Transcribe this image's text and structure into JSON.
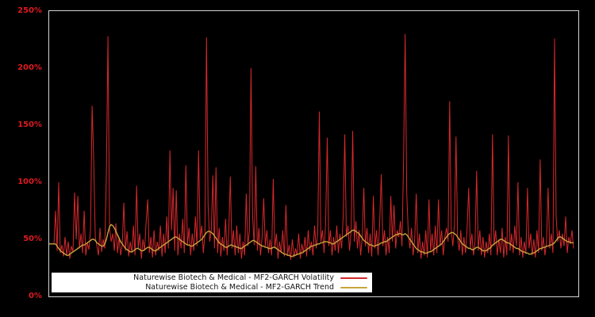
{
  "figure": {
    "background": "#000000",
    "plot_border_color": "#d5d5d5"
  },
  "y_axis": {
    "label_color": "#dd1a21",
    "ticks_top_to_bottom": [
      "250%",
      "200%",
      "150%",
      "100%",
      "50%",
      "0%"
    ]
  },
  "legend": {
    "background": "#ffffff",
    "items": [
      {
        "label": "Naturewise Biotech & Medical - MF2-GARCH Volatility",
        "color": "#d7282c"
      },
      {
        "label": "Naturewise Biotech & Medical - MF2-GARCH Trend",
        "color": "#c9a43c"
      }
    ]
  },
  "chart_data": {
    "type": "line",
    "title": "",
    "xlabel": "",
    "ylabel": "",
    "y_unit": "percent",
    "ylim": [
      0,
      250
    ],
    "y_ticks": [
      0,
      50,
      100,
      150,
      200,
      250
    ],
    "x_tick_labels": [],
    "grid": false,
    "legend_position": "bottom-left",
    "plot_bg": "#000000",
    "series": [
      {
        "name": "Naturewise Biotech & Medical - MF2-GARCH Volatility",
        "color": "#d7282c",
        "values": [
          46,
          46,
          46,
          46,
          75,
          40,
          100,
          38,
          45,
          35,
          52,
          36,
          48,
          33,
          44,
          39,
          91,
          50,
          88,
          42,
          55,
          38,
          75,
          36,
          47,
          41,
          58,
          167,
          120,
          52,
          44,
          36,
          60,
          39,
          50,
          42,
          109,
          228,
          60,
          48,
          55,
          40,
          64,
          38,
          52,
          36,
          45,
          82,
          40,
          57,
          35,
          48,
          38,
          62,
          36,
          97,
          42,
          55,
          33,
          50,
          40,
          65,
          85,
          38,
          52,
          34,
          58,
          36,
          48,
          40,
          62,
          35,
          55,
          38,
          70,
          42,
          128,
          58,
          95,
          40,
          93,
          36,
          55,
          42,
          68,
          38,
          115,
          45,
          60,
          36,
          55,
          40,
          70,
          44,
          128,
          50,
          62,
          38,
          55,
          227,
          80,
          48,
          58,
          106,
          42,
          113,
          38,
          60,
          35,
          52,
          40,
          68,
          36,
          55,
          105,
          42,
          58,
          36,
          62,
          38,
          55,
          33,
          48,
          36,
          90,
          44,
          58,
          200,
          70,
          45,
          114,
          40,
          60,
          36,
          52,
          86,
          44,
          58,
          38,
          50,
          36,
          103,
          42,
          55,
          33,
          48,
          38,
          58,
          35,
          80,
          36,
          45,
          32,
          50,
          34,
          42,
          36,
          55,
          33,
          46,
          38,
          52,
          35,
          58,
          40,
          48,
          36,
          62,
          42,
          55,
          162,
          48,
          58,
          38,
          66,
          139,
          44,
          58,
          36,
          52,
          40,
          62,
          38,
          55,
          42,
          70,
          142,
          52,
          62,
          40,
          58,
          145,
          48,
          66,
          42,
          58,
          36,
          52,
          95,
          44,
          60,
          38,
          55,
          35,
          88,
          42,
          58,
          36,
          65,
          107,
          44,
          58,
          36,
          52,
          38,
          88,
          48,
          80,
          42,
          58,
          52,
          66,
          44,
          120,
          230,
          90,
          55,
          42,
          60,
          36,
          50,
          90,
          38,
          55,
          33,
          48,
          36,
          58,
          34,
          85,
          40,
          55,
          36,
          62,
          38,
          85,
          44,
          58,
          36,
          52,
          60,
          48,
          171,
          58,
          44,
          62,
          140,
          52,
          40,
          58,
          36,
          52,
          38,
          60,
          95,
          42,
          55,
          36,
          48,
          110,
          40,
          58,
          36,
          52,
          34,
          48,
          38,
          55,
          36,
          142,
          44,
          58,
          36,
          50,
          38,
          60,
          34,
          52,
          36,
          141,
          40,
          55,
          38,
          62,
          44,
          100,
          36,
          52,
          34,
          48,
          38,
          95,
          42,
          55,
          36,
          50,
          34,
          58,
          38,
          120,
          40,
          52,
          36,
          48,
          95,
          42,
          55,
          38,
          226,
          70,
          48,
          58,
          42,
          55,
          44,
          70,
          38,
          52,
          46,
          58,
          42
        ]
      },
      {
        "name": "Naturewise Biotech & Medical - MF2-GARCH Trend",
        "color": "#c9a43c",
        "values": [
          46,
          46,
          46,
          46,
          46,
          44,
          42,
          40,
          39,
          38,
          37,
          36,
          36,
          37,
          38,
          39,
          40,
          41,
          42,
          43,
          44,
          45,
          45,
          46,
          47,
          48,
          49,
          50,
          50,
          49,
          47,
          46,
          45,
          44,
          44,
          46,
          50,
          56,
          61,
          63,
          62,
          60,
          57,
          54,
          51,
          48,
          46,
          44,
          42,
          41,
          40,
          39,
          39,
          40,
          41,
          42,
          42,
          41,
          40,
          40,
          41,
          42,
          43,
          43,
          42,
          41,
          40,
          40,
          41,
          42,
          43,
          44,
          45,
          46,
          47,
          48,
          49,
          50,
          51,
          52,
          52,
          51,
          50,
          49,
          48,
          47,
          46,
          45,
          45,
          44,
          44,
          45,
          46,
          47,
          48,
          49,
          50,
          52,
          54,
          56,
          57,
          57,
          56,
          55,
          53,
          51,
          49,
          47,
          46,
          45,
          44,
          43,
          43,
          44,
          45,
          45,
          44,
          44,
          43,
          43,
          42,
          42,
          43,
          44,
          45,
          46,
          47,
          48,
          49,
          49,
          48,
          47,
          46,
          45,
          44,
          44,
          43,
          43,
          42,
          42,
          42,
          43,
          43,
          42,
          41,
          40,
          39,
          38,
          37,
          37,
          36,
          36,
          35,
          35,
          36,
          36,
          37,
          37,
          38,
          38,
          39,
          40,
          41,
          42,
          43,
          44,
          44,
          45,
          45,
          46,
          46,
          47,
          47,
          48,
          48,
          48,
          47,
          47,
          46,
          46,
          47,
          48,
          49,
          50,
          51,
          52,
          53,
          54,
          55,
          56,
          57,
          58,
          58,
          57,
          56,
          55,
          53,
          51,
          49,
          48,
          47,
          46,
          45,
          45,
          44,
          44,
          45,
          45,
          46,
          47,
          47,
          48,
          48,
          49,
          50,
          51,
          52,
          53,
          54,
          54,
          55,
          55,
          54,
          54,
          55,
          54,
          52,
          50,
          48,
          46,
          44,
          42,
          41,
          40,
          39,
          39,
          38,
          38,
          38,
          39,
          39,
          40,
          41,
          42,
          43,
          44,
          45,
          46,
          48,
          50,
          52,
          54,
          55,
          56,
          56,
          55,
          54,
          52,
          50,
          48,
          46,
          45,
          44,
          43,
          42,
          42,
          41,
          41,
          42,
          43,
          43,
          42,
          41,
          40,
          40,
          40,
          41,
          42,
          43,
          45,
          46,
          47,
          48,
          49,
          50,
          50,
          49,
          48,
          47,
          47,
          46,
          45,
          44,
          43,
          42,
          42,
          41,
          40,
          39,
          39,
          38,
          38,
          37,
          37,
          38,
          38,
          39,
          40,
          41,
          42,
          42,
          43,
          43,
          44,
          44,
          45,
          45,
          46,
          47,
          49,
          51,
          52,
          52,
          51,
          50,
          49,
          48,
          48,
          47,
          47,
          47
        ]
      }
    ]
  }
}
